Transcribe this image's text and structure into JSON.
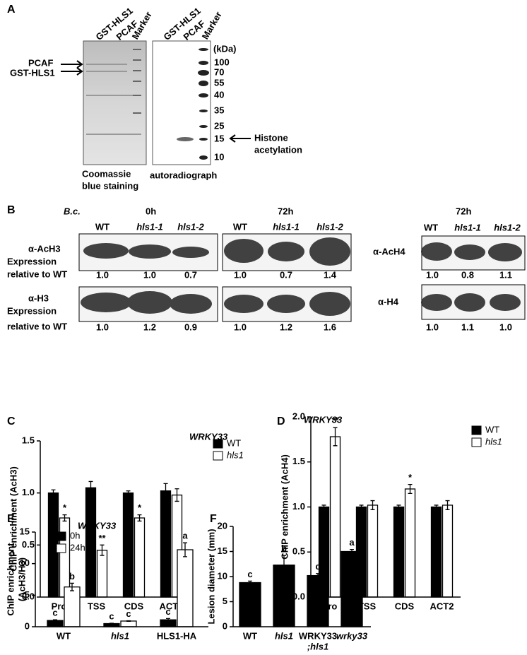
{
  "panel_a": {
    "label": "A",
    "coomassie_lanes": [
      "GST-HLS1",
      "PCAF",
      "Marker"
    ],
    "autoradiograph_lanes": [
      "GST-HLS1",
      "PCAF",
      "Marker"
    ],
    "arrows": [
      "PCAF",
      "GST-HLS1"
    ],
    "kda_unit": "(kDa)",
    "kda": [
      100,
      70,
      55,
      40,
      35,
      25,
      15,
      10
    ],
    "histone": [
      "Histone",
      "acetylation"
    ],
    "coomassie_caption": [
      "Coomassie",
      "blue staining"
    ],
    "autoradiograph_caption": "autoradiograph"
  },
  "panel_b": {
    "label": "B",
    "treatment": "B.c.",
    "groups": [
      "0h",
      "72h",
      "72h"
    ],
    "lanes": [
      [
        "WT",
        "hls1-1",
        "hls1-2"
      ],
      [
        "WT",
        "hls1-1",
        "hls1-2"
      ],
      [
        "WT",
        "hls1-1",
        "hls1-2"
      ]
    ],
    "expression_label": [
      "Expression",
      "relative to WT"
    ],
    "ach3": {
      "antibody": "α-AcH3",
      "values": [
        "1.0",
        "1.0",
        "0.7",
        "1.0",
        "0.7",
        "1.4"
      ]
    },
    "h3": {
      "antibody": "α-H3",
      "values": [
        "1.0",
        "1.2",
        "0.9",
        "1.0",
        "1.2",
        "1.6"
      ]
    },
    "ach4": {
      "antibody": "α-AcH4",
      "values": [
        "1.0",
        "0.8",
        "1.1"
      ]
    },
    "h4": {
      "antibody": "α-H4",
      "values": [
        "1.0",
        "1.1",
        "1.0"
      ]
    }
  },
  "chart_data": [
    {
      "type": "bar",
      "label": "C",
      "title": "WRKY33",
      "ylabel": "ChIP enrichment (AcH3)",
      "categories": [
        "Pro",
        "TSS",
        "CDS",
        "ACT2"
      ],
      "series": [
        {
          "name": "WT",
          "color": "#000000",
          "values": [
            1.0,
            1.05,
            1.0,
            1.02
          ],
          "errors": [
            0.03,
            0.06,
            0.02,
            0.07
          ],
          "annotations": [
            null,
            null,
            null,
            null
          ]
        },
        {
          "name": "hls1",
          "color": "#ffffff",
          "values": [
            0.76,
            0.45,
            0.76,
            0.98
          ],
          "errors": [
            0.03,
            0.05,
            0.03,
            0.06
          ],
          "annotations": [
            "*",
            "**",
            "*",
            null
          ]
        }
      ],
      "ylim": [
        0,
        1.5
      ],
      "yticks": [
        {
          "value": 0,
          "label": "0.0"
        },
        0.5,
        {
          "value": 1,
          "label": "1.0"
        },
        1.5
      ],
      "legend": "upper right"
    },
    {
      "type": "bar",
      "label": "D",
      "title": "WRKY33",
      "ylabel": "ChIP enrichment (AcH4)",
      "categories": [
        "Pro",
        "TSS",
        "CDS",
        "ACT2"
      ],
      "series": [
        {
          "name": "WT",
          "color": "#000000",
          "values": [
            1.0,
            1.0,
            1.0,
            1.0
          ],
          "errors": [
            0.02,
            0.02,
            0.02,
            0.02
          ],
          "annotations": [
            null,
            null,
            null,
            null
          ]
        },
        {
          "name": "hls1",
          "color": "#ffffff",
          "values": [
            1.78,
            1.02,
            1.2,
            1.02
          ],
          "errors": [
            0.1,
            0.05,
            0.05,
            0.05
          ],
          "annotations": [
            "**",
            null,
            "*",
            null
          ]
        }
      ],
      "ylim": [
        0,
        2
      ],
      "yticks": [
        {
          "value": 0,
          "label": "0.0"
        },
        0.5,
        {
          "value": 1,
          "label": "1.0"
        },
        1.5,
        {
          "value": 2,
          "label": "2.0"
        }
      ],
      "legend": "upper right"
    },
    {
      "type": "bar",
      "label": "E",
      "title": "WRKY33",
      "ylabel": [
        "ChIP enrichment",
        "(AcH3/H3)"
      ],
      "categories": [
        "WT",
        "hls1",
        "HLS1-HA"
      ],
      "series": [
        {
          "name": "0h",
          "color": "#000000",
          "values": [
            1.0,
            0.5,
            1.1
          ],
          "errors": [
            0.1,
            0.05,
            0.2
          ],
          "annotations": [
            "c",
            "c",
            "c"
          ]
        },
        {
          "name": "24h",
          "color": "#ffffff",
          "values": [
            6.3,
            0.9,
            12.2
          ],
          "errors": [
            0.6,
            0.05,
            1.1
          ],
          "annotations": [
            "b",
            "c",
            "a"
          ]
        }
      ],
      "ylim": [
        0,
        15
      ],
      "yticks": [
        0,
        5,
        10,
        15
      ],
      "legend": "upper left"
    },
    {
      "type": "bar",
      "label": "F",
      "ylabel": "Lesion diameter (mm)",
      "categories": [
        "WT",
        "hls1",
        [
          "WRKY33",
          ";hls1"
        ],
        "wrky33"
      ],
      "series": [
        {
          "color": "#000000",
          "values": [
            8.8,
            12.3,
            10.2,
            15.0
          ],
          "errors": [
            0.3,
            1.9,
            0.4,
            0.4
          ],
          "annotations": [
            "c",
            "b",
            "c",
            "a"
          ]
        }
      ],
      "ylim": [
        0,
        20
      ],
      "yticks": [
        0,
        5,
        10,
        15,
        20
      ]
    }
  ]
}
